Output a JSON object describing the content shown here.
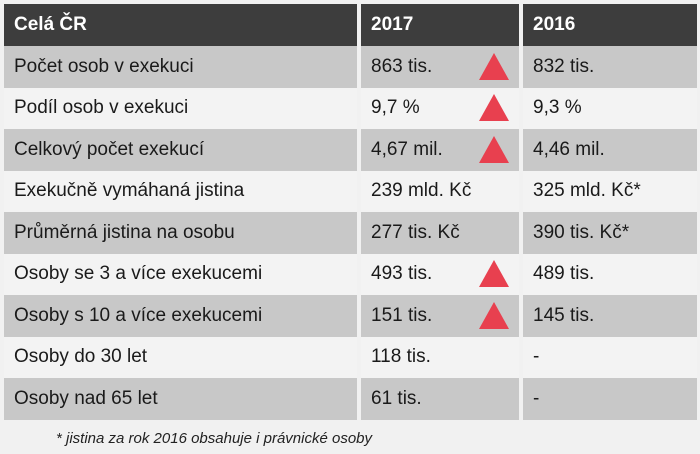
{
  "table": {
    "headers": [
      "Celá ČR",
      "2017",
      "2016"
    ],
    "rows": [
      {
        "label": "Počet osob v exekuci",
        "v2017": "863 tis.",
        "increase": true,
        "v2016": "832 tis."
      },
      {
        "label": "Podíl osob v exekuci",
        "v2017": "9,7 %",
        "increase": true,
        "v2016": "9,3 %"
      },
      {
        "label": "Celkový počet exekucí",
        "v2017": "4,67 mil.",
        "increase": true,
        "v2016": "4,46 mil."
      },
      {
        "label": "Exekučně vymáhaná jistina",
        "v2017": "239 mld. Kč",
        "increase": false,
        "v2016": "325 mld. Kč*"
      },
      {
        "label": "Průměrná jistina na osobu",
        "v2017": "277 tis. Kč",
        "increase": false,
        "v2016": "390 tis. Kč*"
      },
      {
        "label": "Osoby se 3 a více exekucemi",
        "v2017": "493 tis.",
        "increase": true,
        "v2016": "489 tis."
      },
      {
        "label": "Osoby s 10 a více exekucemi",
        "v2017": "151 tis.",
        "increase": true,
        "v2016": "145 tis."
      },
      {
        "label": "Osoby do 30 let",
        "v2017": "118 tis.",
        "increase": false,
        "v2016": "-"
      },
      {
        "label": "Osoby nad 65 let",
        "v2017": "61 tis.",
        "increase": false,
        "v2016": "-"
      }
    ],
    "increase_icon": "triangle-up-icon",
    "increase_color": "#e8404f"
  },
  "footnote": "* jistina za rok 2016 obsahuje i právnické osoby"
}
